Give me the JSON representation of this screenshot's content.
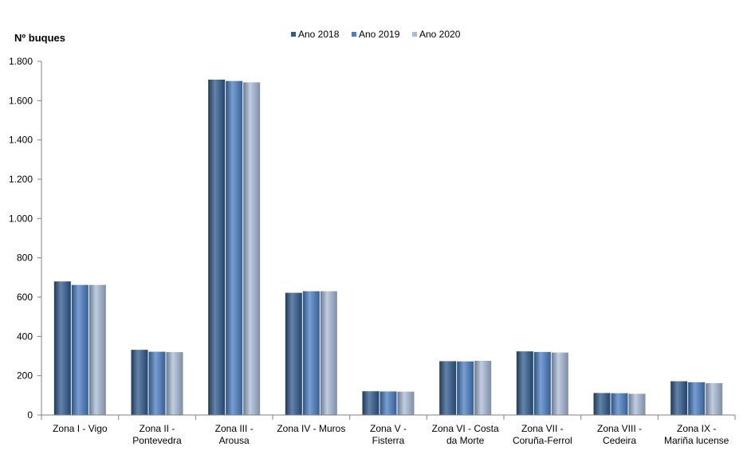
{
  "chart_data": {
    "type": "bar",
    "title": "",
    "xlabel": "",
    "ylabel": "Nº  buques",
    "ylim": [
      0,
      1800
    ],
    "yticks": [
      0,
      200,
      400,
      600,
      800,
      1000,
      1200,
      1400,
      1600,
      1800
    ],
    "ytick_labels": [
      "0",
      "200",
      "400",
      "600",
      "800",
      "1.000",
      "1.200",
      "1.400",
      "1.600",
      "1.800"
    ],
    "grid": false,
    "legend_position": "top-center",
    "categories": [
      [
        "Zona I - Vigo"
      ],
      [
        "Zona II -",
        "Pontevedra"
      ],
      [
        "Zona III -",
        "Arousa"
      ],
      [
        "Zona IV - Muros"
      ],
      [
        "Zona V -",
        "Fisterra"
      ],
      [
        "Zona VI - Costa",
        "da Morte"
      ],
      [
        "Zona VII -",
        "Coruña-Ferrol"
      ],
      [
        "Zona VIII -",
        "Cedeira"
      ],
      [
        "Zona IX -",
        "Mariña lucense"
      ]
    ],
    "series": [
      {
        "name": "Ano 2018",
        "color": "#2f5a8e",
        "values": [
          680,
          332,
          1707,
          622,
          121,
          274,
          324,
          112,
          172
        ]
      },
      {
        "name": "Ano 2019",
        "color": "#4a7fc4",
        "values": [
          662,
          322,
          1700,
          630,
          120,
          273,
          321,
          111,
          167
        ]
      },
      {
        "name": "Ano 2020",
        "color": "#a9bcd8",
        "values": [
          662,
          320,
          1693,
          630,
          119,
          276,
          318,
          108,
          162
        ]
      }
    ]
  }
}
